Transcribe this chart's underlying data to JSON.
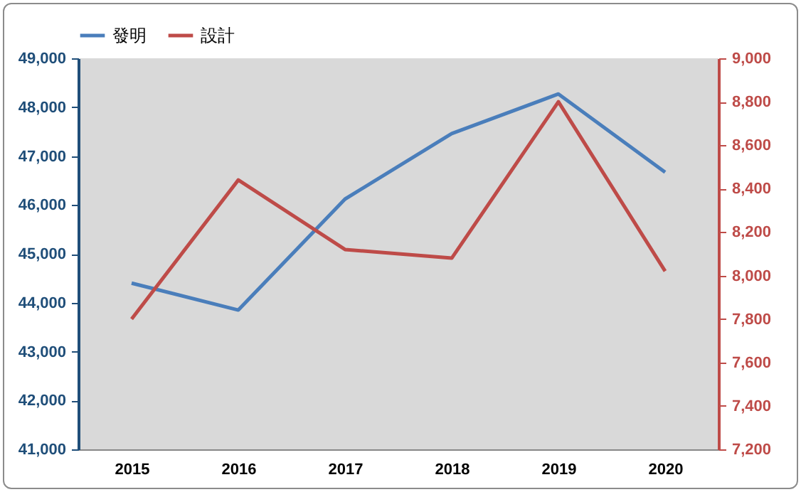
{
  "chart_data": {
    "type": "line",
    "categories": [
      "2015",
      "2016",
      "2017",
      "2018",
      "2019",
      "2020"
    ],
    "series": [
      {
        "name": "發明",
        "color": "#4a7ebb",
        "values": [
          44400,
          43850,
          46120,
          47460,
          48270,
          46670
        ]
      },
      {
        "name": "設計",
        "color": "#be4b48",
        "axis": "y2",
        "values": [
          7800,
          8440,
          8120,
          8080,
          8800,
          8020
        ]
      }
    ],
    "ylim": [
      41000,
      49000
    ],
    "yticks": [
      {
        "value": 41000,
        "label": "41,000"
      },
      {
        "value": 42000,
        "label": "42,000"
      },
      {
        "value": 43000,
        "label": "43,000"
      },
      {
        "value": 44000,
        "label": "44,000"
      },
      {
        "value": 45000,
        "label": "45,000"
      },
      {
        "value": 46000,
        "label": "46,000"
      },
      {
        "value": 47000,
        "label": "47,000"
      },
      {
        "value": 48000,
        "label": "48,000"
      },
      {
        "value": 49000,
        "label": "49,000"
      }
    ],
    "y2lim": [
      7200,
      9000
    ],
    "y2ticks": [
      {
        "value": 7200,
        "label": "7,200"
      },
      {
        "value": 7400,
        "label": "7,400"
      },
      {
        "value": 7600,
        "label": "7,600"
      },
      {
        "value": 7800,
        "label": "7,800"
      },
      {
        "value": 8000,
        "label": "8,000"
      },
      {
        "value": 8200,
        "label": "8,200"
      },
      {
        "value": 8400,
        "label": "8,400"
      },
      {
        "value": 8600,
        "label": "8,600"
      },
      {
        "value": 8800,
        "label": "8,800"
      },
      {
        "value": 9000,
        "label": "9,000"
      }
    ],
    "grid": false,
    "legend": "top",
    "marker": "none",
    "line_style": "solid"
  }
}
